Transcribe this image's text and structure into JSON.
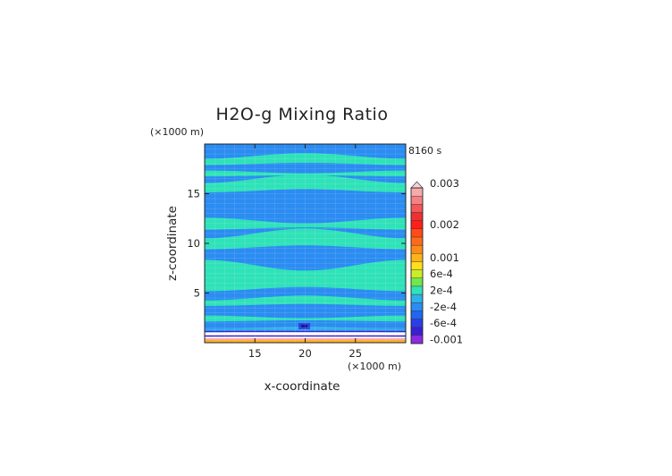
{
  "chart_data": {
    "type": "heatmap",
    "title": "H2O-g Mixing Ratio",
    "xlabel": "x-coordinate",
    "ylabel": "z-coordinate",
    "x_unit": "(×1000 m)",
    "y_unit": "(×1000 m)",
    "time_label": "8160 s",
    "xlim": [
      10,
      30
    ],
    "ylim": [
      0,
      20
    ],
    "x_ticks": [
      "15",
      "20",
      "25"
    ],
    "y_ticks": [
      "5",
      "10",
      "15"
    ],
    "x_tick_values": [
      15,
      20,
      25
    ],
    "y_tick_values": [
      5,
      10,
      15
    ],
    "colorbar": {
      "levels": [
        {
          "color": "#8a2be2",
          "label": "-0.001"
        },
        {
          "color": "#3b1fd1",
          "label": ""
        },
        {
          "color": "#2b3fe6",
          "label": "-6e-4"
        },
        {
          "color": "#1f66f0",
          "label": ""
        },
        {
          "color": "#2b8cf2",
          "label": "-2e-4"
        },
        {
          "color": "#2fb0e8",
          "label": ""
        },
        {
          "color": "#2fe2b8",
          "label": "2e-4"
        },
        {
          "color": "#6fe84a",
          "label": ""
        },
        {
          "color": "#c8ee2a",
          "label": "6e-4"
        },
        {
          "color": "#ffe01a",
          "label": ""
        },
        {
          "color": "#ffb31a",
          "label": "0.001"
        },
        {
          "color": "#ff8a1a",
          "label": ""
        },
        {
          "color": "#ff6a1a",
          "label": ""
        },
        {
          "color": "#ff4a1a",
          "label": ""
        },
        {
          "color": "#ff1f1a",
          "label": "0.002"
        },
        {
          "color": "#f03030",
          "label": ""
        },
        {
          "color": "#f25858",
          "label": ""
        },
        {
          "color": "#f48282",
          "label": ""
        },
        {
          "color": "#f7aaaa",
          "label": "0.003"
        }
      ],
      "overflow_color": "#f9d2d2"
    },
    "field": {
      "background_level_color": "#2b8cf2",
      "bands": [
        {
          "z_low": 18.0,
          "z_high": 18.8,
          "color": "#2fe2b8"
        },
        {
          "z_low": 16.8,
          "z_high": 17.2,
          "color": "#2fe2b8"
        },
        {
          "z_low": 15.3,
          "z_high": 16.5,
          "color": "#2fe2b8"
        },
        {
          "z_low": 11.5,
          "z_high": 12.3,
          "color": "#2fe2b8"
        },
        {
          "z_low": 9.6,
          "z_high": 11.0,
          "color": "#2fe2b8"
        },
        {
          "z_low": 5.4,
          "z_high": 7.8,
          "color": "#2fe2b8"
        },
        {
          "z_low": 3.8,
          "z_high": 4.5,
          "color": "#2fe2b8"
        },
        {
          "z_low": 2.2,
          "z_high": 2.6,
          "color": "#2fe2b8"
        }
      ],
      "surface_layer": [
        {
          "z_low": 0.0,
          "z_high": 0.25,
          "color": "#ffb31a"
        },
        {
          "z_low": 0.25,
          "z_high": 0.45,
          "color": "#f7aaaa"
        },
        {
          "z_low": 0.45,
          "z_high": 0.6,
          "color": "#ffffff"
        },
        {
          "z_low": 0.6,
          "z_high": 0.75,
          "color": "#3b1fd1"
        },
        {
          "z_low": 0.75,
          "z_high": 1.05,
          "color": "#ffffff"
        },
        {
          "z_low": 1.05,
          "z_high": 1.2,
          "color": "#3b1fd1"
        },
        {
          "z_low": 1.2,
          "z_high": 1.4,
          "color": "#2fb0e8"
        }
      ]
    }
  }
}
